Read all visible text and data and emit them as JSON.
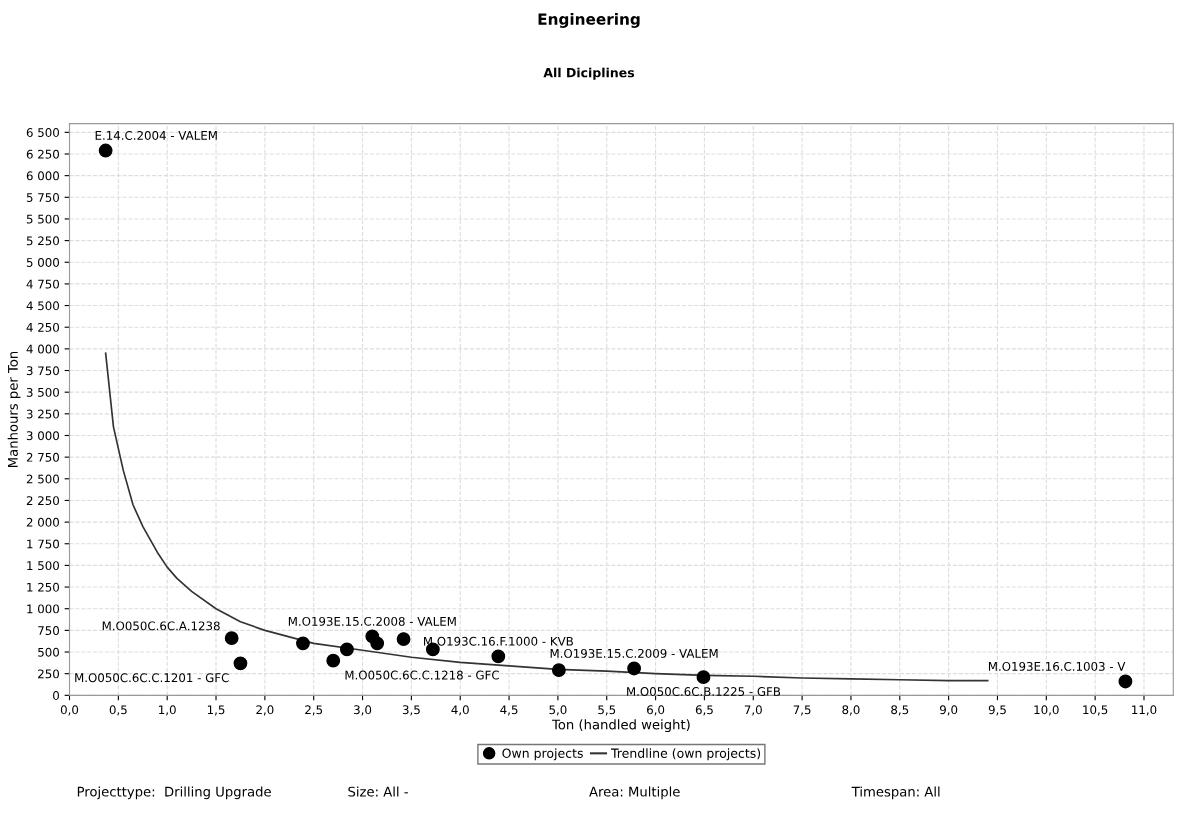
{
  "chart_data": {
    "type": "scatter",
    "title": "Engineering",
    "subtitle": "All Diciplines",
    "xlabel": "Ton (handled weight)",
    "ylabel": "Manhours per Ton",
    "series": [
      {
        "name": "Own projects",
        "color": "#000000",
        "marker": "circle",
        "x": [
          0.37,
          1.66,
          1.75,
          2.39,
          2.7,
          2.84,
          3.1,
          3.15,
          3.42,
          3.72,
          4.39,
          5.01,
          5.78,
          6.49,
          10.81
        ],
        "values": [
          6290,
          660,
          370,
          600,
          400,
          530,
          680,
          600,
          650,
          530,
          450,
          290,
          310,
          210,
          160
        ]
      },
      {
        "name": "Trendline (own projects)",
        "type": "line",
        "color": "#333333",
        "line_style": "solid",
        "marker": "none",
        "x": [
          0.37,
          0.45,
          0.55,
          0.65,
          0.75,
          0.9,
          1.0,
          1.1,
          1.25,
          1.5,
          1.75,
          2.0,
          2.5,
          3.0,
          3.5,
          4.0,
          4.5,
          5.0,
          5.5,
          6.0,
          6.5,
          7.0,
          7.5,
          8.0,
          8.5,
          9.0,
          9.4
        ],
        "values": [
          3950,
          3100,
          2600,
          2200,
          1950,
          1650,
          1480,
          1350,
          1200,
          1000,
          850,
          750,
          600,
          520,
          440,
          380,
          340,
          300,
          280,
          250,
          230,
          220,
          200,
          190,
          180,
          170,
          170
        ]
      }
    ],
    "xlim": [
      0,
      11.3
    ],
    "ylim": [
      0,
      6600
    ],
    "xticks": [
      {
        "value": 0,
        "label": "0,0"
      },
      {
        "value": 0.5,
        "label": "0,5"
      },
      {
        "value": 1,
        "label": "1,0"
      },
      {
        "value": 1.5,
        "label": "1,5"
      },
      {
        "value": 2,
        "label": "2,0"
      },
      {
        "value": 2.5,
        "label": "2,5"
      },
      {
        "value": 3,
        "label": "3,0"
      },
      {
        "value": 3.5,
        "label": "3,5"
      },
      {
        "value": 4,
        "label": "4,0"
      },
      {
        "value": 4.5,
        "label": "4,5"
      },
      {
        "value": 5,
        "label": "5,0"
      },
      {
        "value": 5.5,
        "label": "5,5"
      },
      {
        "value": 6,
        "label": "6,0"
      },
      {
        "value": 6.5,
        "label": "6,5"
      },
      {
        "value": 7,
        "label": "7,0"
      },
      {
        "value": 7.5,
        "label": "7,5"
      },
      {
        "value": 8,
        "label": "8,0"
      },
      {
        "value": 8.5,
        "label": "8,5"
      },
      {
        "value": 9,
        "label": "9,0"
      },
      {
        "value": 9.5,
        "label": "9,5"
      },
      {
        "value": 10,
        "label": "10,0"
      },
      {
        "value": 10.5,
        "label": "10,5"
      },
      {
        "value": 11,
        "label": "11,0"
      }
    ],
    "yticks": [
      0,
      250,
      500,
      750,
      {
        "value": 1000,
        "label": "1 000"
      },
      {
        "value": 1250,
        "label": "1 250"
      },
      {
        "value": 1500,
        "label": "1 500"
      },
      {
        "value": 1750,
        "label": "1 750"
      },
      {
        "value": 2000,
        "label": "2 000"
      },
      {
        "value": 2250,
        "label": "2 250"
      },
      {
        "value": 2500,
        "label": "2 500"
      },
      {
        "value": 2750,
        "label": "2 750"
      },
      {
        "value": 3000,
        "label": "3 000"
      },
      {
        "value": 3250,
        "label": "3 250"
      },
      {
        "value": 3500,
        "label": "3 500"
      },
      {
        "value": 3750,
        "label": "3 750"
      },
      {
        "value": 4000,
        "label": "4 000"
      },
      {
        "value": 4250,
        "label": "4 250"
      },
      {
        "value": 4500,
        "label": "4 500"
      },
      {
        "value": 4750,
        "label": "4 750"
      },
      {
        "value": 5000,
        "label": "5 000"
      },
      {
        "value": 5250,
        "label": "5 250"
      },
      {
        "value": 5500,
        "label": "5 500"
      },
      {
        "value": 5750,
        "label": "5 750"
      },
      {
        "value": 6000,
        "label": "6 000"
      },
      {
        "value": 6250,
        "label": "6 250"
      },
      {
        "value": 6500,
        "label": "6 500"
      }
    ],
    "grid": true,
    "legend": "bottom",
    "annotations": [
      {
        "text": "E.14.C.2004 - VALEM",
        "x": 0.37,
        "y": 6290
      },
      {
        "text": "M.O050C.6C.A.1238",
        "x": 1.66,
        "y": 660
      },
      {
        "text": "M.O050C.6C.C.1201 - GFC",
        "x": 1.75,
        "y": 370
      },
      {
        "text": "M.O050C.6C.C.1218 - GFC",
        "x": 2.7,
        "y": 400
      },
      {
        "text": "M.O193E.15.C.2008 - VALEM",
        "x": 3.1,
        "y": 680
      },
      {
        "text": "M.O193C.16.F.1000 - KVB",
        "x": 4.39,
        "y": 450
      },
      {
        "text": "M.O193E.15.C.2009 - VALEM",
        "x": 5.78,
        "y": 310
      },
      {
        "text": "M.O050C.6C.B.1225 - GFB",
        "x": 6.49,
        "y": 210
      },
      {
        "text": "M.O193E.16.C.1003 - V",
        "x": 10.81,
        "y": 160
      },
      "Projecttype:  Drilling Upgrade",
      "Size: All -",
      "Area: Multiple",
      "Timespan: All"
    ]
  }
}
